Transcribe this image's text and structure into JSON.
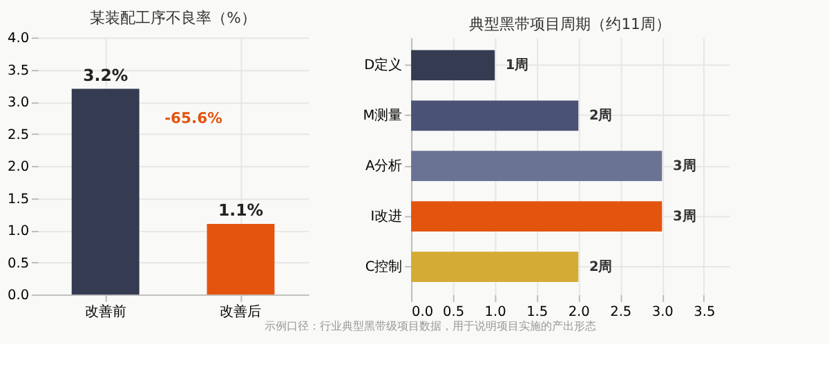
{
  "chart_data": [
    {
      "type": "bar",
      "title": "某装配工序不良率（%）",
      "categories": [
        "改善前",
        "改善后"
      ],
      "values": [
        3.2,
        1.1
      ],
      "colors": [
        "#353b50",
        "#e3540f"
      ],
      "value_labels": [
        "3.2%",
        "1.1%"
      ],
      "ylim": [
        0,
        4
      ],
      "yticks": [
        {
          "value": 0,
          "label": "0.0"
        },
        0.5,
        {
          "value": 1,
          "label": "1.0"
        },
        1.5,
        {
          "value": 2,
          "label": "2.0"
        },
        2.5,
        {
          "value": 3,
          "label": "3.0"
        },
        3.5,
        {
          "value": 4,
          "label": "4.0"
        }
      ],
      "grid": true,
      "annotations": [
        "-65.6%"
      ]
    },
    {
      "type": "bar",
      "orientation": "horizontal",
      "title": "典型黑带项目周期（约11周）",
      "categories": [
        "D定义",
        "M测量",
        "A分析",
        "I改进",
        "C控制"
      ],
      "values": [
        1,
        2,
        3,
        3,
        2
      ],
      "colors": [
        "#353b50",
        "#4a5275",
        "#6b7394",
        "#e3540f",
        "#d4ab35"
      ],
      "value_labels": [
        "1周",
        "2周",
        "3周",
        "3周",
        "2周"
      ],
      "xlim": [
        0,
        3.8
      ],
      "xticks": [
        {
          "value": 0,
          "label": "0.0"
        },
        0.5,
        {
          "value": 1,
          "label": "1.0"
        },
        1.5,
        {
          "value": 2,
          "label": "2.0"
        },
        2.5,
        {
          "value": 3,
          "label": "3.0"
        },
        3.5
      ],
      "grid": true,
      "annotations": [
        "示例口径：行业典型黑带级项目数据，用于说明项目实施的产出形态"
      ]
    }
  ]
}
